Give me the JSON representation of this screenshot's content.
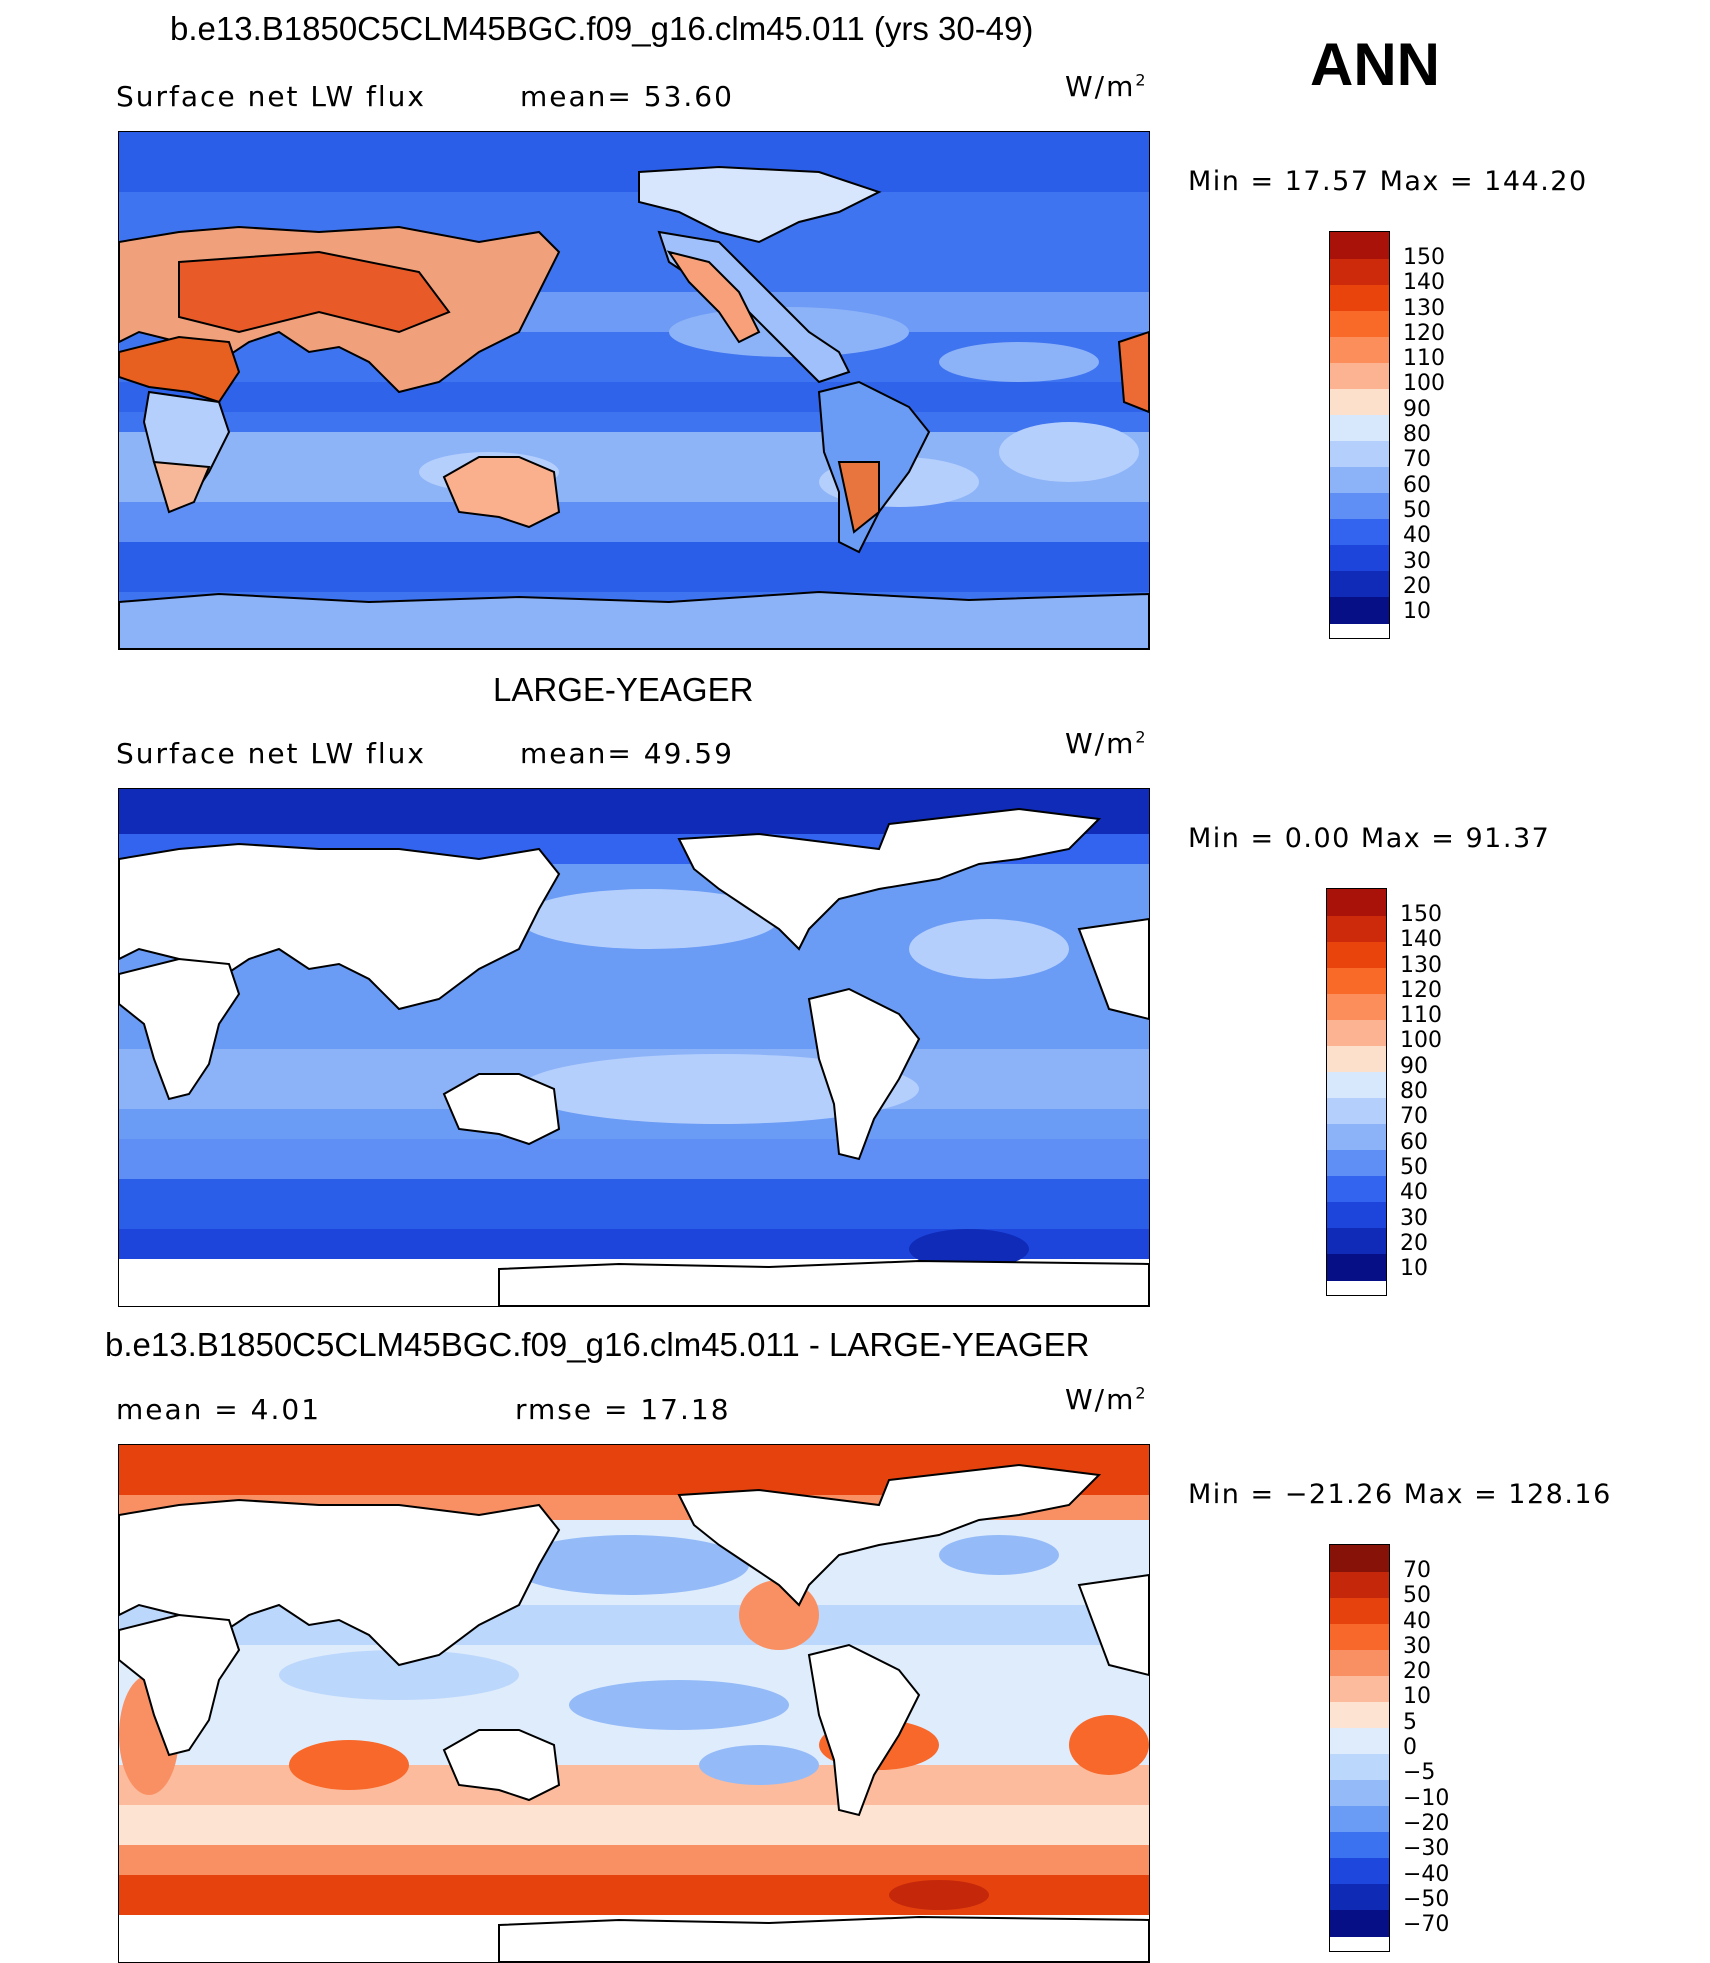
{
  "season": "ANN",
  "colors": {
    "abs_scale": [
      "#a81208",
      "#cc2a0a",
      "#e8440c",
      "#f96a28",
      "#fb8e5a",
      "#fcb392",
      "#fde0cc",
      "#d8e8fc",
      "#b4cffc",
      "#8cb2f8",
      "#5f8ff5",
      "#3264f0",
      "#1d45dc",
      "#0f2bb8",
      "#060f85"
    ],
    "diff_scale": [
      "#861208",
      "#c4270a",
      "#e5420e",
      "#f7682a",
      "#f99064",
      "#fbbb9c",
      "#fde3d2",
      "#deecfc",
      "#bcd7fc",
      "#94bbf8",
      "#6a9bf5",
      "#3a72f0",
      "#1e48dd",
      "#0f2bb5",
      "#060f85"
    ],
    "land": "#ffffff",
    "ocean_deep": "#2a5de8"
  },
  "panels": [
    {
      "title": "b.e13.B1850C5CLM45BGC.f09_g16.clm45.011 (yrs 30-49)",
      "left_label": "Surface net LW flux",
      "mid_label": "mean=  53.60",
      "units": "W/m",
      "units_sup": "2",
      "minmax": "Min =   17.57 Max =  144.20",
      "colorbar_labels": [
        "150",
        "140",
        "130",
        "120",
        "110",
        "100",
        "90",
        "80",
        "70",
        "60",
        "50",
        "40",
        "30",
        "20",
        "10"
      ]
    },
    {
      "title": "LARGE-YEAGER",
      "left_label": "Surface net LW flux",
      "mid_label": "mean=  49.59",
      "units": "W/m",
      "units_sup": "2",
      "minmax": "Min =    0.00 Max =   91.37",
      "colorbar_labels": [
        "150",
        "140",
        "130",
        "120",
        "110",
        "100",
        "90",
        "80",
        "70",
        "60",
        "50",
        "40",
        "30",
        "20",
        "10"
      ]
    },
    {
      "title": "b.e13.B1850C5CLM45BGC.f09_g16.clm45.011 - LARGE-YEAGER",
      "left_label": "mean =    4.01",
      "mid_label": "rmse =   17.18",
      "units": "W/m",
      "units_sup": "2",
      "minmax": "Min = −21.26 Max =  128.16",
      "colorbar_labels": [
        "70",
        "50",
        "40",
        "30",
        "20",
        "10",
        "5",
        "0",
        "−5",
        "−10",
        "−20",
        "−30",
        "−40",
        "−50",
        "−70"
      ]
    }
  ]
}
